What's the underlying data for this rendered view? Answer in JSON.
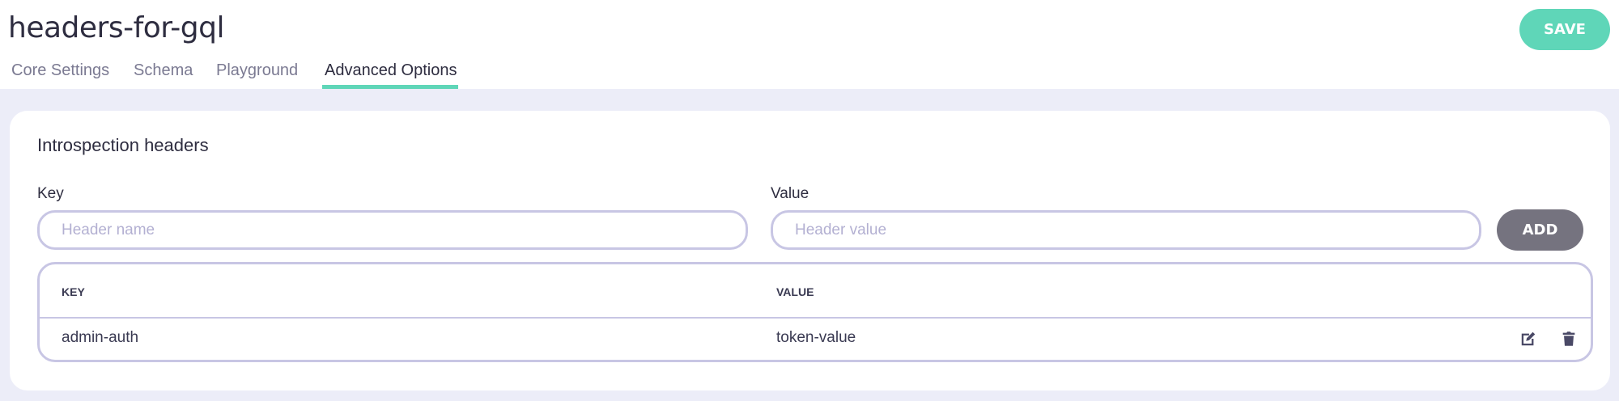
{
  "header": {
    "title": "headers-for-gql",
    "save_label": "SAVE"
  },
  "tabs": [
    {
      "label": "Core Settings"
    },
    {
      "label": "Schema"
    },
    {
      "label": "Playground"
    },
    {
      "label": "Advanced Options",
      "active": true
    }
  ],
  "colors": {
    "accent": "#5fd6b8",
    "add_button": "#75737f",
    "border": "#c8c6e4",
    "background": "#ecedf8"
  },
  "section": {
    "title": "Introspection headers",
    "key_label": "Key",
    "key_placeholder": "Header name",
    "key_value": "",
    "value_label": "Value",
    "value_placeholder": "Header value",
    "value_value": "",
    "add_label": "ADD",
    "table": {
      "columns": [
        "KEY",
        "VALUE"
      ],
      "rows": [
        {
          "key": "admin-auth",
          "value": "token-value",
          "actions": [
            "edit-icon",
            "trash-icon"
          ]
        }
      ]
    }
  }
}
